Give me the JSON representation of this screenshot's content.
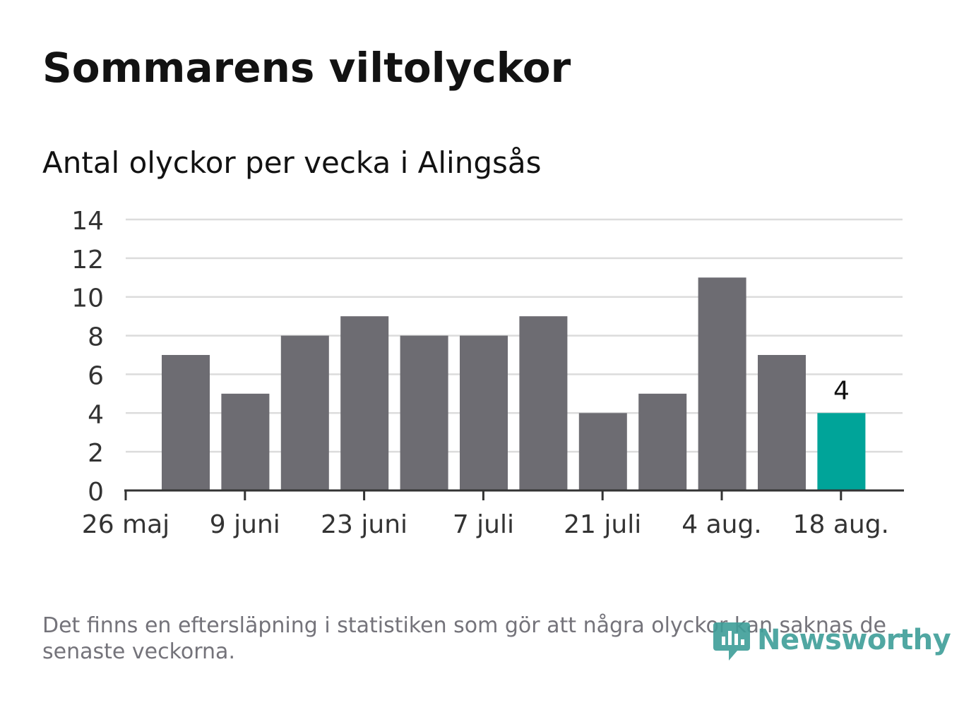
{
  "header": {
    "title": "Sommarens viltolyckor",
    "subtitle": "Antal olyckor per vecka i Alingsås"
  },
  "chart_data": {
    "type": "bar",
    "title": "Sommarens viltolyckor",
    "subtitle": "Antal olyckor per vecka i Alingsås",
    "xlabel": "",
    "ylabel": "",
    "ylim": [
      0,
      14
    ],
    "yticks": [
      0,
      2,
      4,
      6,
      8,
      10,
      12,
      14
    ],
    "xtick_labels": [
      "26 maj",
      "9 juni",
      "23 juni",
      "7 juli",
      "21 juli",
      "4 aug.",
      "18 aug."
    ],
    "values": [
      7,
      5,
      8,
      9,
      8,
      8,
      9,
      4,
      5,
      11,
      7,
      4
    ],
    "highlight_index": 11,
    "highlight_label": "4",
    "grid": true,
    "colors": {
      "bar": "#6d6c72",
      "highlight": "#00a499",
      "grid": "#dcdcdc",
      "axis": "#333333"
    }
  },
  "footnote": "Det finns en eftersläpning i statistiken som gör att några olyckor kan saknas de senaste veckorna.",
  "logo": {
    "text": "Newsworthy",
    "icon": "newsworthy-logo-icon",
    "color": "#3e9e99"
  }
}
